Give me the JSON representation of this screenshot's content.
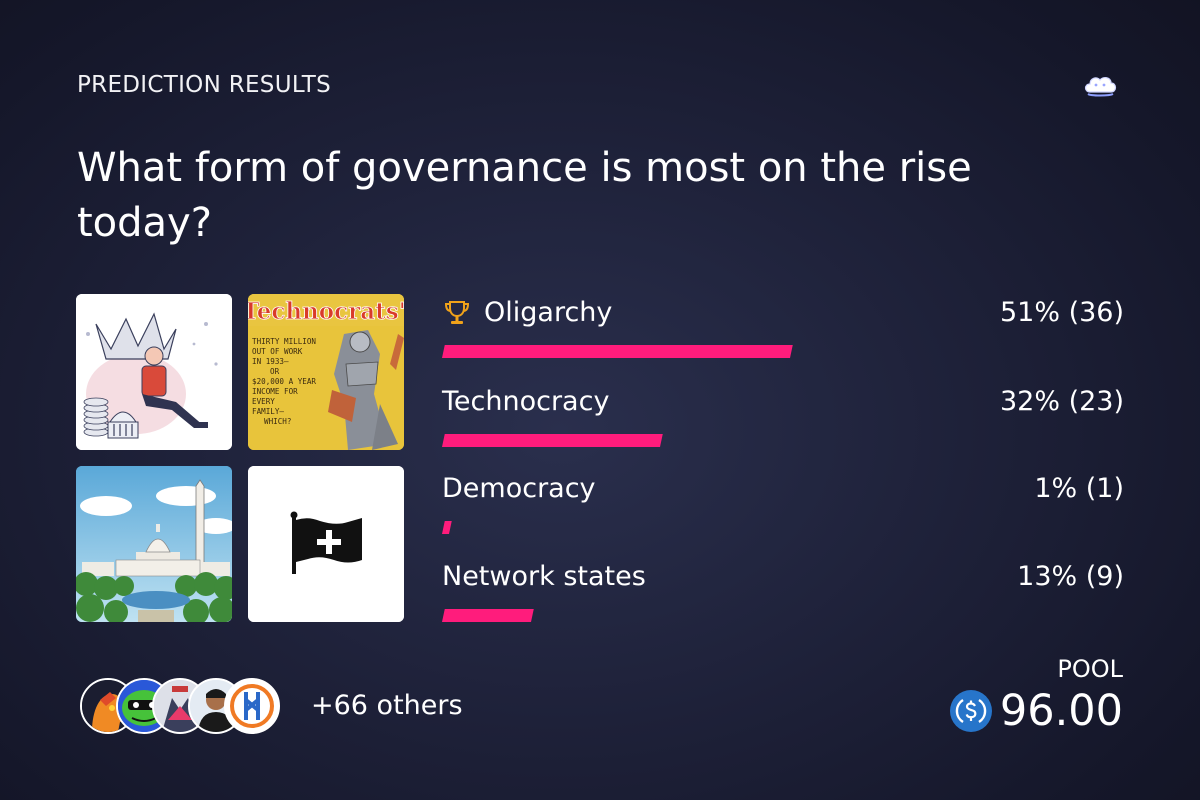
{
  "header": {
    "label": "PREDICTION RESULTS",
    "logo_icon": "cloud-logo-icon"
  },
  "question": "What form of governance is most on the rise today?",
  "images": [
    {
      "name": "oligarchy-illustration",
      "subject": "man-with-crown-and-capitol"
    },
    {
      "name": "technocrats-magazine-cover",
      "title": "Technocrats'",
      "text": "THIRTY MILLION OUT OF WORK IN 1933— OR $20,000 A YEAR INCOME FOR EVERY FAMILY— WHICH?"
    },
    {
      "name": "washington-capitol-illustration",
      "subject": "capitol-and-monument"
    },
    {
      "name": "network-state-flag",
      "icon": "flag-plus-icon"
    }
  ],
  "options": [
    {
      "label": "Oligarchy",
      "value_text": "51% (36)",
      "percent": 51,
      "votes": 36,
      "winner": true,
      "icon": "trophy-icon"
    },
    {
      "label": "Technocracy",
      "value_text": "32% (23)",
      "percent": 32,
      "votes": 23,
      "winner": false
    },
    {
      "label": "Democracy",
      "value_text": "1% (1)",
      "percent": 1,
      "votes": 1,
      "winner": false
    },
    {
      "label": "Network states",
      "value_text": "13% (9)",
      "percent": 13,
      "votes": 9,
      "winner": false
    }
  ],
  "participants": {
    "avatar_count": 5,
    "others_text": "+66 others"
  },
  "pool": {
    "label": "POOL",
    "amount": "96.00",
    "currency_icon": "usdc-icon"
  },
  "colors": {
    "bar": "#ff1c7c",
    "background": "#1e2139",
    "usdc": "#2775ca"
  }
}
